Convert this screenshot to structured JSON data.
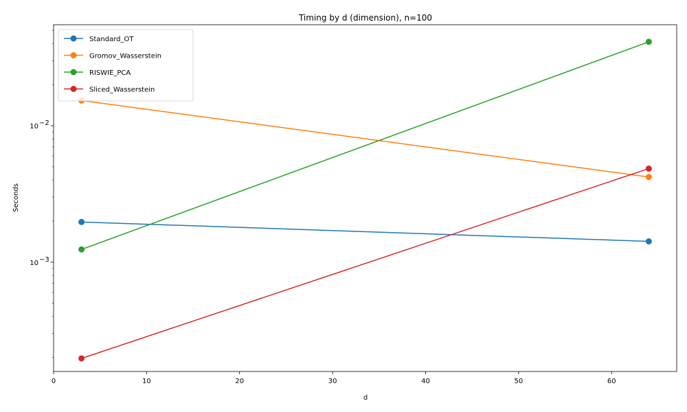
{
  "chart_data": {
    "type": "line",
    "title": "Timing by d (dimension), n=100",
    "xlabel": "d",
    "ylabel": "Seconds",
    "x": [
      3,
      64
    ],
    "xlim": [
      0,
      67
    ],
    "ylim": [
      0.000158,
      0.055
    ],
    "yscale": "log",
    "x_ticks": [
      0,
      10,
      20,
      30,
      40,
      50,
      60
    ],
    "y_ticks": [
      {
        "value": 0.001,
        "base": "10",
        "exp": "−3"
      },
      {
        "value": 0.01,
        "base": "10",
        "exp": "−2"
      }
    ],
    "grid": false,
    "legend_position": "upper-left",
    "series": [
      {
        "name": "Standard_OT",
        "color": "#1f77b4",
        "values": [
          0.00197,
          0.00142
        ]
      },
      {
        "name": "Gromov_Wasserstein",
        "color": "#ff7f0e",
        "values": [
          0.0153,
          0.00421
        ]
      },
      {
        "name": "RISWIE_PCA",
        "color": "#2ca02c",
        "values": [
          0.00124,
          0.0412
        ]
      },
      {
        "name": "Sliced_Wasserstein",
        "color": "#d62728",
        "values": [
          0.000197,
          0.00485
        ]
      }
    ]
  }
}
